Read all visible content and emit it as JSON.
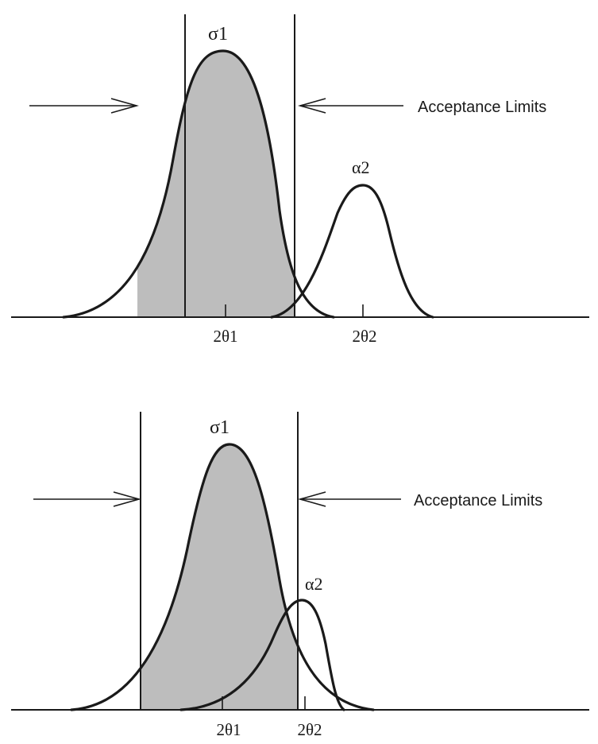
{
  "colors": {
    "ink": "#1a1a1a",
    "shade": "#bdbdbd",
    "background": "#ffffff"
  },
  "panels": [
    {
      "curve1_label": "σ1",
      "curve2_label": "α2",
      "acceptance_label": "Acceptance Limits",
      "peak1_label": "2θ1",
      "peak2_label": "2θ2"
    },
    {
      "curve1_label": "σ1",
      "curve2_label": "α2",
      "acceptance_label": "Acceptance Limits",
      "peak1_label": "2θ1",
      "peak2_label": "2θ2"
    }
  ]
}
